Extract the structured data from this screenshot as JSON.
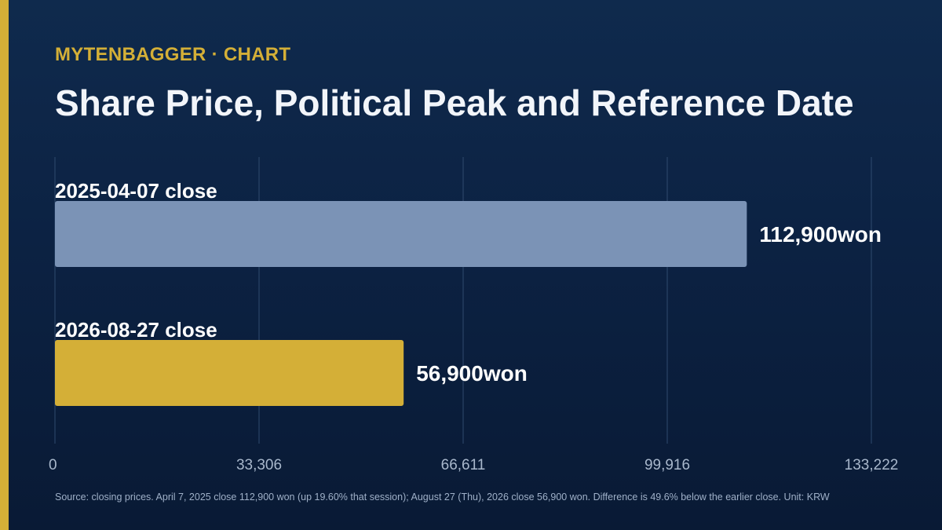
{
  "brand": {
    "kicker": "MYTENBAGGER · CHART",
    "accent_color": "#d4af37",
    "background_color": "#0c2243"
  },
  "title": "Share Price, Political Peak and Reference Date",
  "footnote": "Source: closing prices. April 7, 2025 close 112,900 won (up 19.60% that session); August 27 (Thu), 2026 close 56,900 won. Difference is 49.6% below the earlier close. Unit: KRW",
  "chart_data": {
    "type": "bar",
    "orientation": "horizontal",
    "categories": [
      "2025-04-07 close",
      "2026-08-27 close"
    ],
    "values": [
      112900,
      56900
    ],
    "value_labels": [
      "112,900won",
      "56,900won"
    ],
    "colors": [
      "#7b93b6",
      "#d4af37"
    ],
    "x_ticks": [
      "0",
      "33,306",
      "66,611",
      "99,916",
      "133,222"
    ],
    "xlim": [
      0,
      133222
    ],
    "grid": true,
    "unit": "KRW"
  }
}
